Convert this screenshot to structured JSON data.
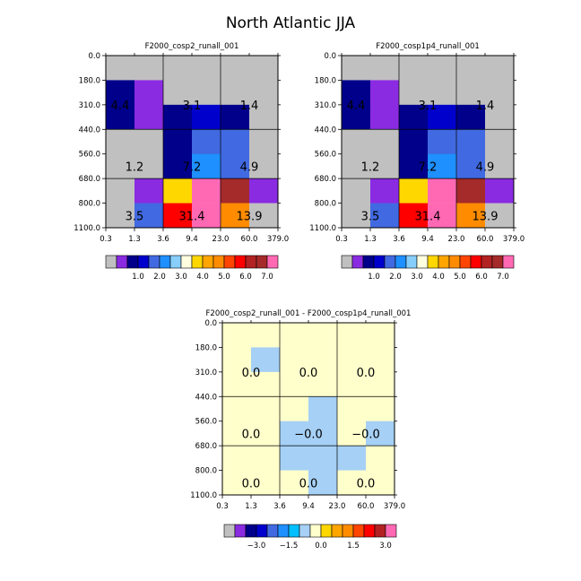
{
  "page_title": "North Atlantic JJA",
  "colors": {
    "main_palette": [
      "#c0c0c0",
      "#8a2be2",
      "#00008b",
      "#0000cd",
      "#4169e1",
      "#1e90ff",
      "#87cefa",
      "#ffffe0",
      "#ffd700",
      "#ffa500",
      "#ff8c00",
      "#ff4500",
      "#ff0000",
      "#b22222",
      "#a52a2a",
      "#ff69b4"
    ],
    "diff_palette": [
      "#c0c0c0",
      "#8a2be2",
      "#00008b",
      "#0000cd",
      "#4169e1",
      "#1e90ff",
      "#00bfff",
      "#a6d0f5",
      "#ffffcc",
      "#ffd700",
      "#ffa500",
      "#ff8c00",
      "#ff4500",
      "#ff0000",
      "#b22222",
      "#ff69b4"
    ]
  },
  "chart_data": [
    {
      "type": "heatmap",
      "title": "F2000_cosp2_runall_001",
      "x_ticks": [
        "0.3",
        "1.3",
        "3.6",
        "9.4",
        "23.0",
        "60.0",
        "379.0"
      ],
      "y_ticks": [
        "0.0",
        "180.0",
        "310.0",
        "440.0",
        "560.0",
        "680.0",
        "800.0",
        "1100.0"
      ],
      "cell_colors": [
        [
          0,
          0,
          0,
          0,
          0,
          0
        ],
        [
          2,
          1,
          0,
          0,
          0,
          0
        ],
        [
          2,
          1,
          2,
          3,
          2,
          0
        ],
        [
          0,
          0,
          2,
          4,
          4,
          0
        ],
        [
          0,
          0,
          2,
          5,
          4,
          0
        ],
        [
          0,
          1,
          8,
          15,
          14,
          1
        ],
        [
          0,
          4,
          12,
          15,
          10,
          0
        ]
      ],
      "labels": [
        {
          "text": "4.4",
          "col": 0,
          "row": 1.5
        },
        {
          "text": "3.1",
          "col": 2.5,
          "row": 1.5
        },
        {
          "text": "1.4",
          "col": 4.5,
          "row": 1.5
        },
        {
          "text": "1.2",
          "col": 0.5,
          "row": 4
        },
        {
          "text": "7.2",
          "col": 2.5,
          "row": 4
        },
        {
          "text": "4.9",
          "col": 4.5,
          "row": 4
        },
        {
          "text": "3.5",
          "col": 0.5,
          "row": 6
        },
        {
          "text": "31.4",
          "col": 2.5,
          "row": 6
        },
        {
          "text": "13.9",
          "col": 4.5,
          "row": 6
        }
      ]
    },
    {
      "type": "heatmap",
      "title": "F2000_cosp1p4_runall_001",
      "x_ticks": [
        "0.3",
        "1.3",
        "3.6",
        "9.4",
        "23.0",
        "60.0",
        "379.0"
      ],
      "y_ticks": [
        "0.0",
        "180.0",
        "310.0",
        "440.0",
        "560.0",
        "680.0",
        "800.0",
        "1100.0"
      ],
      "cell_colors": [
        [
          0,
          0,
          0,
          0,
          0,
          0
        ],
        [
          2,
          1,
          0,
          0,
          0,
          0
        ],
        [
          2,
          1,
          2,
          3,
          2,
          0
        ],
        [
          0,
          0,
          2,
          4,
          4,
          0
        ],
        [
          0,
          0,
          2,
          5,
          4,
          0
        ],
        [
          0,
          1,
          8,
          15,
          14,
          1
        ],
        [
          0,
          4,
          12,
          15,
          10,
          0
        ]
      ],
      "labels": [
        {
          "text": "4.4",
          "col": 0,
          "row": 1.5
        },
        {
          "text": "3.1",
          "col": 2.5,
          "row": 1.5
        },
        {
          "text": "1.4",
          "col": 4.5,
          "row": 1.5
        },
        {
          "text": "1.2",
          "col": 0.5,
          "row": 4
        },
        {
          "text": "7.2",
          "col": 2.5,
          "row": 4
        },
        {
          "text": "4.9",
          "col": 4.5,
          "row": 4
        },
        {
          "text": "3.5",
          "col": 0.5,
          "row": 6
        },
        {
          "text": "31.4",
          "col": 2.5,
          "row": 6
        },
        {
          "text": "13.9",
          "col": 4.5,
          "row": 6
        }
      ]
    },
    {
      "type": "heatmap",
      "title": "F2000_cosp2_runall_001 - F2000_cosp1p4_runall_001",
      "x_ticks": [
        "0.3",
        "1.3",
        "3.6",
        "9.4",
        "23.0",
        "60.0",
        "379.0"
      ],
      "y_ticks": [
        "0.0",
        "180.0",
        "310.0",
        "440.0",
        "560.0",
        "680.0",
        "800.0",
        "1100.0"
      ],
      "cell_colors": [
        [
          8,
          8,
          8,
          8,
          8,
          8
        ],
        [
          8,
          7,
          8,
          8,
          8,
          8
        ],
        [
          8,
          8,
          8,
          8,
          8,
          8
        ],
        [
          8,
          8,
          8,
          7,
          8,
          8
        ],
        [
          8,
          8,
          7,
          7,
          8,
          7
        ],
        [
          8,
          8,
          7,
          7,
          7,
          8
        ],
        [
          8,
          8,
          8,
          7,
          8,
          8
        ]
      ],
      "labels": [
        {
          "text": "0.0",
          "col": 0.5,
          "row": 1.5
        },
        {
          "text": "0.0",
          "col": 2.5,
          "row": 1.5
        },
        {
          "text": "0.0",
          "col": 4.5,
          "row": 1.5
        },
        {
          "text": "0.0",
          "col": 0.5,
          "row": 4
        },
        {
          "text": "−0.0",
          "col": 2.5,
          "row": 4
        },
        {
          "text": "−0.0",
          "col": 4.5,
          "row": 4
        },
        {
          "text": "0.0",
          "col": 0.5,
          "row": 6
        },
        {
          "text": "0.0",
          "col": 2.5,
          "row": 6
        },
        {
          "text": "0.0",
          "col": 4.5,
          "row": 6
        }
      ]
    }
  ],
  "colorbars": [
    {
      "palette": "main_palette",
      "labels": [
        "1.0",
        "2.0",
        "3.0",
        "4.0",
        "5.0",
        "6.0",
        "7.0"
      ],
      "label_after_box": [
        3,
        5,
        7,
        9,
        11,
        13,
        15
      ]
    },
    {
      "palette": "main_palette",
      "labels": [
        "1.0",
        "2.0",
        "3.0",
        "4.0",
        "5.0",
        "6.0",
        "7.0"
      ],
      "label_after_box": [
        3,
        5,
        7,
        9,
        11,
        13,
        15
      ]
    },
    {
      "palette": "diff_palette",
      "labels": [
        "−3.0",
        "−1.5",
        "0.0",
        "1.5",
        "3.0"
      ],
      "label_after_box": [
        3,
        6,
        9,
        12,
        15
      ]
    }
  ]
}
